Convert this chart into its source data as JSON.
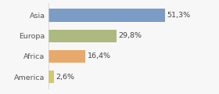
{
  "categories": [
    "Asia",
    "Europa",
    "Africa",
    "America"
  ],
  "values": [
    51.3,
    29.8,
    16.4,
    2.6
  ],
  "labels": [
    "51,3%",
    "29,8%",
    "16,4%",
    "2,6%"
  ],
  "bar_colors": [
    "#7b9cc4",
    "#adb97e",
    "#e8a96c",
    "#d4c96a"
  ],
  "background_color": "#f7f7f7",
  "xlim": [
    0,
    70
  ],
  "bar_height": 0.62,
  "label_fontsize": 6.8,
  "tick_fontsize": 6.8,
  "label_color": "#444444",
  "tick_color": "#555555"
}
